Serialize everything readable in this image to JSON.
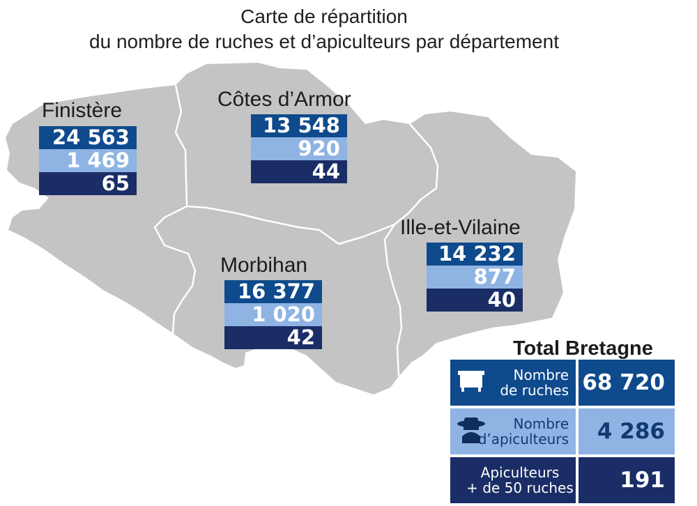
{
  "title": {
    "line1": "Carte de répartition",
    "line2": "du nombre de ruches et d’apiculteurs par département"
  },
  "departments": [
    {
      "name": "Finistère",
      "hives": "24 563",
      "beekeepers": "1 469",
      "over50": "65"
    },
    {
      "name": "Côtes d’Armor",
      "hives": "13 548",
      "beekeepers": "920",
      "over50": "44"
    },
    {
      "name": "Morbihan",
      "hives": "16 377",
      "beekeepers": "1 020",
      "over50": "42"
    },
    {
      "name": "Ille-et-Vilaine",
      "hives": "14 232",
      "beekeepers": "877",
      "over50": "40"
    }
  ],
  "total": {
    "title": "Total Bretagne",
    "rows": [
      {
        "label_line1": "Nombre",
        "label_line2": "de ruches",
        "value": "68 720",
        "icon": "beehive-icon"
      },
      {
        "label_line1": "Nombre",
        "label_line2": "d’apiculteurs",
        "value": "4 286",
        "icon": "beekeeper-icon"
      },
      {
        "label_line1": "Apiculteurs",
        "label_line2": "+ de 50 ruches",
        "value": "191"
      }
    ]
  },
  "colors": {
    "map_fill": "#c4c4c4",
    "border": "#ffffff",
    "hives": "#0e4a8c",
    "beekeepers": "#8fb4e3",
    "over50": "#1a2d66"
  }
}
